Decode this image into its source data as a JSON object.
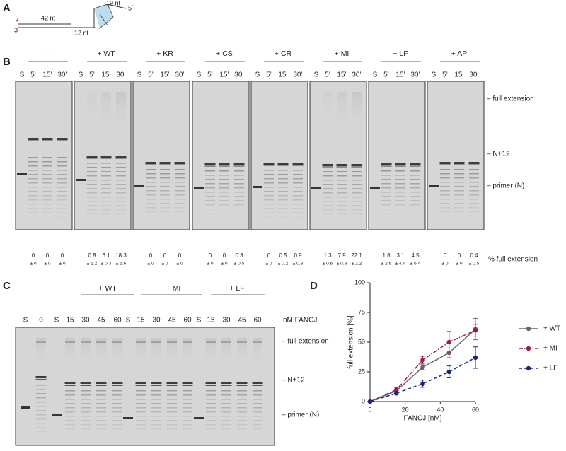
{
  "panel_a": {
    "label": "A",
    "top_length": "19 nt",
    "middle_length": "42 nt",
    "bottom_length": "12 nt",
    "five_prime": "5´",
    "three_prime": "3´",
    "label_mark": "*"
  },
  "panel_b": {
    "label": "B",
    "lanes": [
      "S",
      "5’",
      "15’",
      "30’"
    ],
    "gels": [
      {
        "condition": "–",
        "values": [
          0,
          0,
          0
        ],
        "errors": [
          "± 0",
          "± 0",
          "± 0"
        ]
      },
      {
        "condition": "+ WT",
        "values": [
          0.8,
          6.1,
          18.3
        ],
        "errors": [
          "± 1.2",
          "± 0.3",
          "± 5.6"
        ]
      },
      {
        "condition": "+ KR",
        "values": [
          0,
          0,
          0
        ],
        "errors": [
          "± 0",
          "± 0",
          "± 0"
        ]
      },
      {
        "condition": "+ CS",
        "values": [
          0,
          0,
          0.3
        ],
        "errors": [
          "± 0",
          "± 0",
          "± 0.5"
        ]
      },
      {
        "condition": "+ CR",
        "values": [
          0,
          0.5,
          0.9
        ],
        "errors": [
          "± 0",
          "± 0.2",
          "± 0.8"
        ]
      },
      {
        "condition": "+ MI",
        "values": [
          1.3,
          7.9,
          22.1
        ],
        "errors": [
          "± 0.6",
          "± 0.8",
          "± 2.2"
        ]
      },
      {
        "condition": "+ LF",
        "values": [
          1.8,
          3.1,
          4.5
        ],
        "errors": [
          "± 2.6",
          "± 4.4",
          "± 6.4"
        ]
      },
      {
        "condition": "+ AP",
        "values": [
          0,
          0,
          0.4
        ],
        "errors": [
          "± 0",
          "± 0",
          "± 0.5"
        ]
      }
    ],
    "markers": [
      "– full extension",
      "– N+12",
      "– primer (N)"
    ],
    "quantity_label": "% full extension"
  },
  "panel_c": {
    "label": "C",
    "lanes": [
      "S",
      "0",
      "S",
      "15",
      "30",
      "45",
      "60",
      "S",
      "15",
      "30",
      "45",
      "60",
      "S",
      "15",
      "30",
      "45",
      "60"
    ],
    "groups": [
      "+ WT",
      "+ MI",
      "+ LF"
    ],
    "lane_unit": "nM FANCJ",
    "markers": [
      "– full extension",
      "– N+12",
      "– primer (N)"
    ]
  },
  "panel_d": {
    "label": "D"
  },
  "chart_data": {
    "type": "line",
    "xlabel": "FANCJ [nM]",
    "ylabel": "full extension [%]",
    "x": [
      0,
      15,
      30,
      45,
      60
    ],
    "xlim": [
      0,
      60
    ],
    "xticks": [
      0,
      20,
      40,
      60
    ],
    "ylim": [
      0,
      100
    ],
    "yticks": [
      0,
      25,
      50,
      75,
      100
    ],
    "legend": "right",
    "series": [
      {
        "name": "+ WT",
        "color": "#666666",
        "dash": "solid",
        "values": [
          0,
          9,
          29,
          41,
          61
        ],
        "errors": [
          0,
          3,
          2,
          4,
          9
        ]
      },
      {
        "name": "+ MI",
        "color": "#9e1a4a",
        "dash": "dashdot",
        "values": [
          0,
          10,
          35,
          50,
          60
        ],
        "errors": [
          0,
          2,
          3,
          9,
          5
        ]
      },
      {
        "name": "+ LF",
        "color": "#1a237e",
        "dash": "dashed",
        "values": [
          0,
          7,
          15,
          25,
          37
        ],
        "errors": [
          0,
          1,
          3,
          5,
          9
        ]
      }
    ]
  }
}
